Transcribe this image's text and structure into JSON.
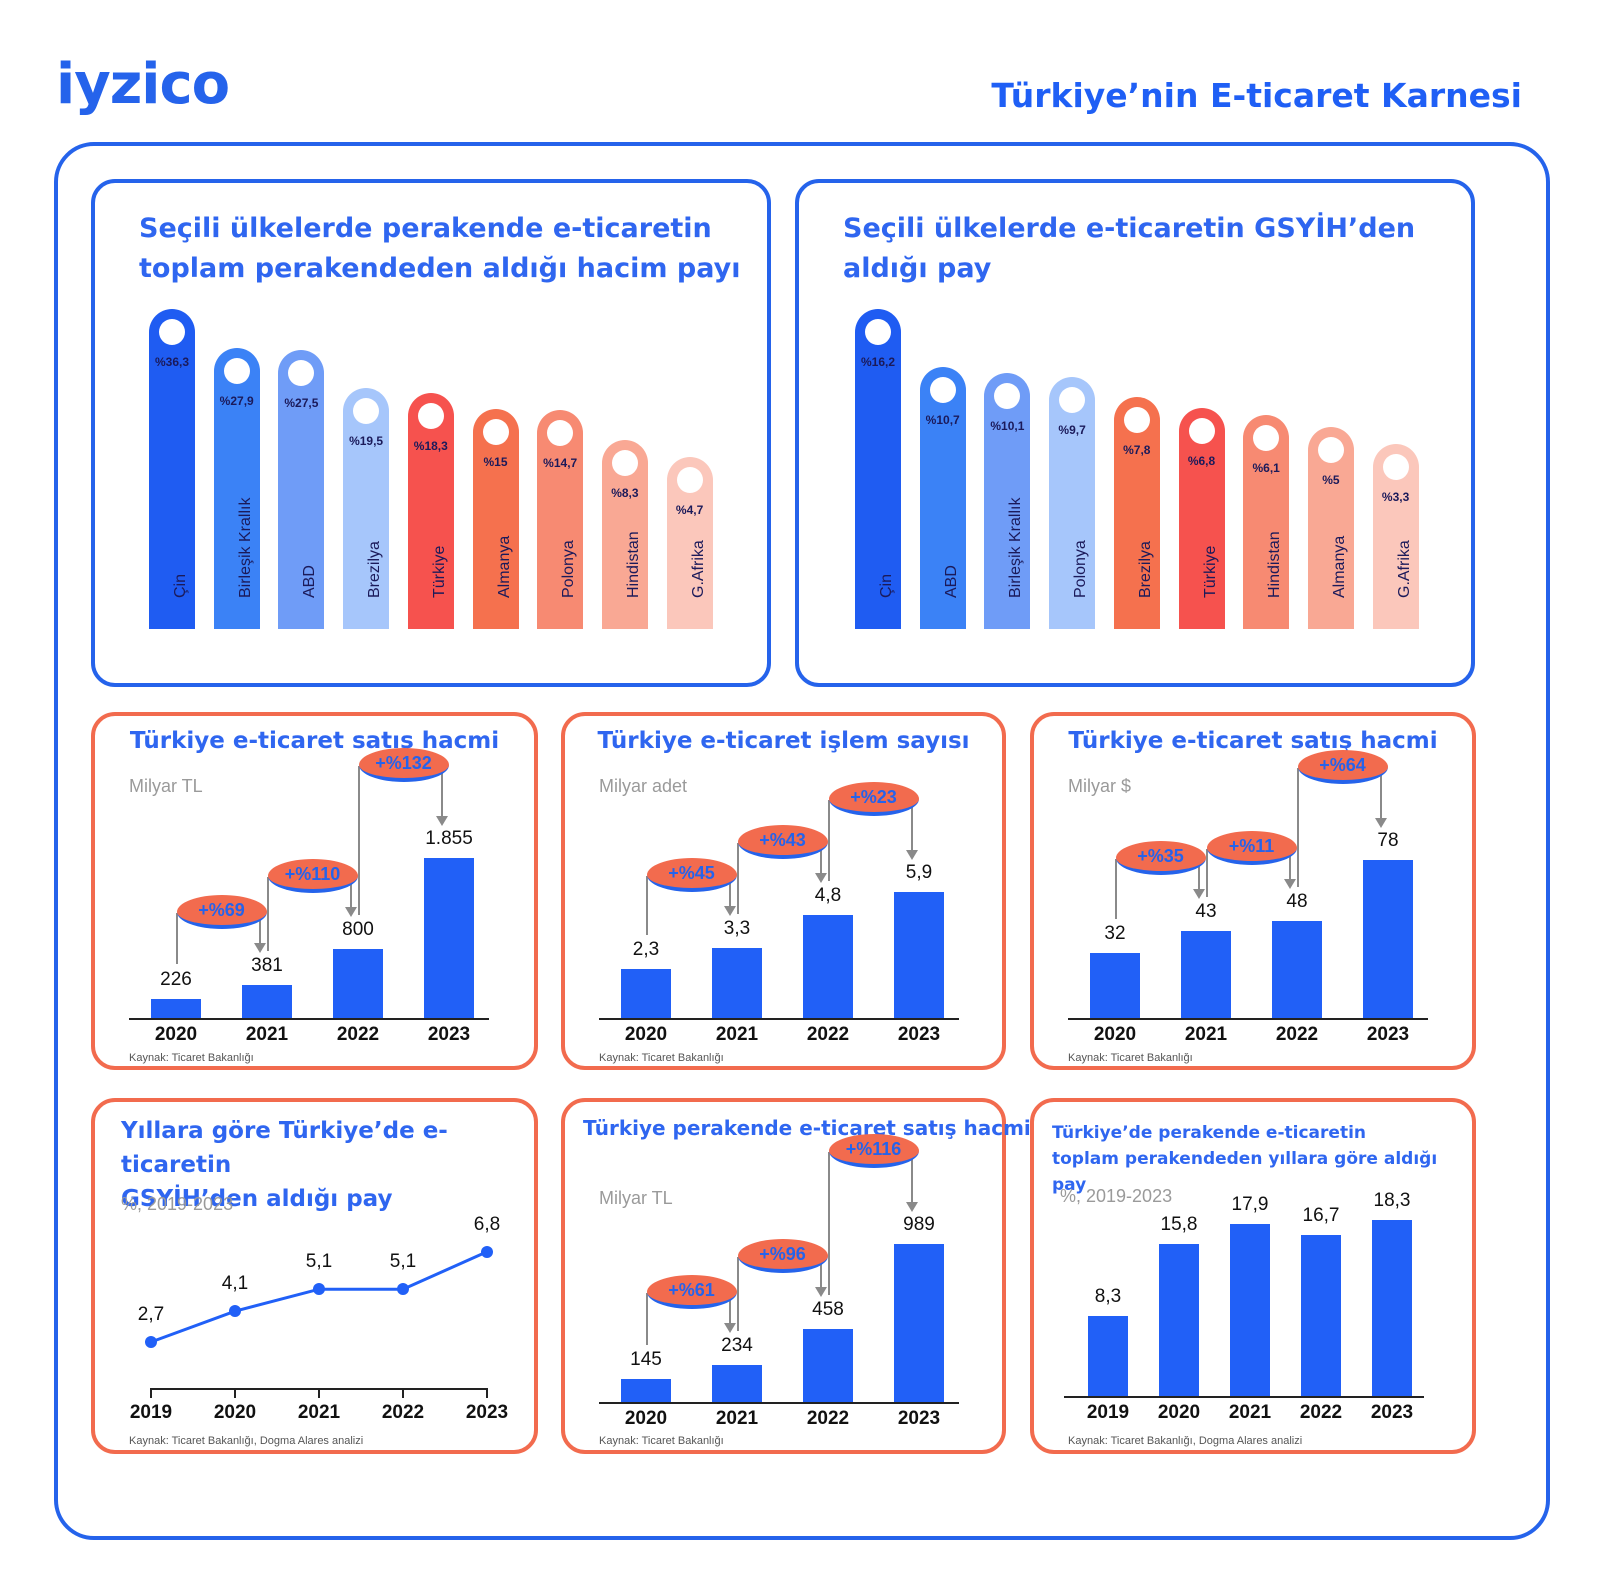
{
  "header": {
    "logo": "iyzico",
    "title": "Türkiye’nin E-ticaret Karnesi"
  },
  "colors": {
    "brand_blue": "#2563eb",
    "bar_blue": "#2160f7",
    "accent_orange": "#f26b4e"
  },
  "chart_data": [
    {
      "id": "retail_share_countries",
      "type": "bar",
      "title": "Seçili ülkelerde perakende e-ticaretin toplam perakendeden aldığı hacim payı",
      "categories": [
        "Çin",
        "Birleşik Krallık",
        "ABD",
        "Brezilya",
        "Türkiye",
        "Almanya",
        "Polonya",
        "Hindistan",
        "G.Afrika"
      ],
      "values": [
        36.3,
        27.9,
        27.5,
        19.5,
        18.3,
        15,
        14.7,
        8.3,
        4.7
      ],
      "labels": [
        "%36,3",
        "%27,9",
        "%27,5",
        "%19,5",
        "%18,3",
        "%15",
        "%14,7",
        "%8,3",
        "%4,7"
      ],
      "colors": [
        "#1f5cf2",
        "#3b82f6",
        "#6f9cf7",
        "#a6c6fb",
        "#f6524e",
        "#f5714e",
        "#f78a72",
        "#f9a894",
        "#fbc7bb"
      ]
    },
    {
      "id": "gdp_share_countries",
      "type": "bar",
      "title": "Seçili ülkelerde e-ticaretin GSYİH’den aldığı pay",
      "categories": [
        "Çin",
        "ABD",
        "Birleşik Krallık",
        "Polonya",
        "Brezilya",
        "Türkiye",
        "Hindistan",
        "Almanya",
        "G.Afrika"
      ],
      "values": [
        16.2,
        10.7,
        10.1,
        9.7,
        7.8,
        6.8,
        6.1,
        5,
        3.3
      ],
      "labels": [
        "%16,2",
        "%10,7",
        "%10,1",
        "%9,7",
        "%7,8",
        "%6,8",
        "%6,1",
        "%5",
        "%3,3"
      ],
      "colors": [
        "#1f5cf2",
        "#3b82f6",
        "#6f9cf7",
        "#a6c6fb",
        "#f5714e",
        "#f6524e",
        "#f78a72",
        "#f9a894",
        "#fbc7bb"
      ]
    },
    {
      "id": "sales_volume_tl",
      "type": "bar",
      "title": "Türkiye e-ticaret satış hacmi",
      "ylabel": "Milyar TL",
      "categories": [
        "2020",
        "2021",
        "2022",
        "2023"
      ],
      "values": [
        226,
        381,
        800,
        1855
      ],
      "labels": [
        "226",
        "381",
        "800",
        "1.855"
      ],
      "growth": [
        "+%69",
        "+%110",
        "+%132"
      ],
      "source": "Kaynak: Ticaret Bakanlığı"
    },
    {
      "id": "transactions",
      "type": "bar",
      "title": "Türkiye e-ticaret işlem sayısı",
      "ylabel": "Milyar adet",
      "categories": [
        "2020",
        "2021",
        "2022",
        "2023"
      ],
      "values": [
        2.3,
        3.3,
        4.8,
        5.9
      ],
      "labels": [
        "2,3",
        "3,3",
        "4,8",
        "5,9"
      ],
      "growth": [
        "+%45",
        "+%43",
        "+%23"
      ],
      "source": "Kaynak: Ticaret Bakanlığı"
    },
    {
      "id": "sales_volume_usd",
      "type": "bar",
      "title": "Türkiye e-ticaret satış hacmi",
      "ylabel": "Milyar $",
      "categories": [
        "2020",
        "2021",
        "2022",
        "2023"
      ],
      "values": [
        32,
        43,
        48,
        78
      ],
      "labels": [
        "32",
        "43",
        "48",
        "78"
      ],
      "growth": [
        "+%35",
        "+%11",
        "+%64"
      ],
      "source": "Kaynak: Ticaret Bakanlığı"
    },
    {
      "id": "gdp_share_years",
      "type": "line",
      "title": "Yıllara göre Türkiye’de e-ticaretin GSYİH’den aldığı pay",
      "ylabel": "%, 2019-2023",
      "categories": [
        "2019",
        "2020",
        "2021",
        "2022",
        "2023"
      ],
      "values": [
        2.7,
        4.1,
        5.1,
        5.1,
        6.8
      ],
      "labels": [
        "2,7",
        "4,1",
        "5,1",
        "5,1",
        "6,8"
      ],
      "source": "Kaynak: Ticaret Bakanlığı, Dogma Alares analizi"
    },
    {
      "id": "retail_sales_volume",
      "type": "bar",
      "title": "Türkiye perakende e-ticaret satış hacmi",
      "ylabel": "Milyar TL",
      "categories": [
        "2020",
        "2021",
        "2022",
        "2023"
      ],
      "values": [
        145,
        234,
        458,
        989
      ],
      "labels": [
        "145",
        "234",
        "458",
        "989"
      ],
      "growth": [
        "+%61",
        "+%96",
        "+%116"
      ],
      "source": "Kaynak: Ticaret Bakanlığı"
    },
    {
      "id": "retail_share_years",
      "type": "bar",
      "title": "Türkiye’de perakende e-ticaretin toplam perakendeden yıllara göre aldığı pay",
      "ylabel": "%, 2019-2023",
      "categories": [
        "2019",
        "2020",
        "2021",
        "2022",
        "2023"
      ],
      "values": [
        8.3,
        15.8,
        17.9,
        16.7,
        18.3
      ],
      "labels": [
        "8,3",
        "15,8",
        "17,9",
        "16,7",
        "18,3"
      ],
      "source": "Kaynak: Ticaret Bakanlığı, Dogma Alares analizi"
    }
  ],
  "panels": {
    "p1": {
      "title_l1": "Seçili ülkelerde perakende e-ticaretin",
      "title_l2": "toplam perakendeden aldığı hacim payı"
    },
    "p2": {
      "title_l1": "Seçili ülkelerde e-ticaretin GSYİH’den",
      "title_l2": "aldığı pay"
    },
    "p3": {
      "title": "Türkiye e-ticaret satış hacmi",
      "unit": "Milyar TL",
      "source": "Kaynak: Ticaret Bakanlığı"
    },
    "p4": {
      "title": "Türkiye e-ticaret işlem sayısı",
      "unit": "Milyar adet",
      "source": "Kaynak: Ticaret Bakanlığı"
    },
    "p5": {
      "title": "Türkiye e-ticaret satış hacmi",
      "unit": "Milyar $",
      "source": "Kaynak: Ticaret Bakanlığı"
    },
    "p6": {
      "title_l1": "Yıllara göre Türkiye’de e-ticaretin",
      "title_l2": "GSYİH’den aldığı pay",
      "unit": "%, 2019-2023",
      "source": "Kaynak: Ticaret Bakanlığı, Dogma Alares analizi"
    },
    "p7": {
      "title": "Türkiye perakende e-ticaret satış hacmi",
      "unit": "Milyar TL",
      "source": "Kaynak: Ticaret Bakanlığı"
    },
    "p8": {
      "title_l1": "Türkiye’de perakende e-ticaretin",
      "title_l2": "toplam perakendeden yıllara göre aldığı pay",
      "unit": "%, 2019-2023",
      "source": "Kaynak: Ticaret Bakanlığı, Dogma Alares analizi"
    }
  }
}
